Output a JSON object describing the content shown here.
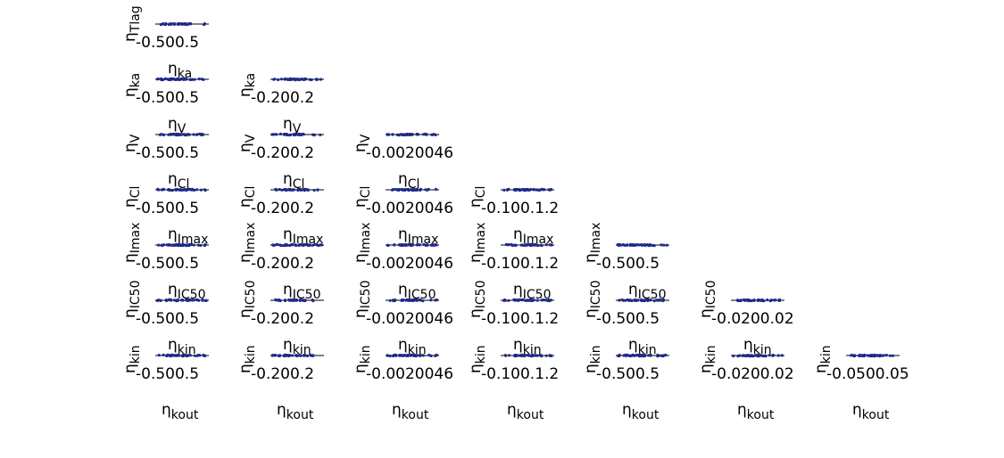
{
  "figure": {
    "background": "#ffffff",
    "marker_color": "#1f2a86",
    "axis_color": "#000000"
  },
  "parameters": [
    "Tlag",
    "ka",
    "V",
    "Cl",
    "Imax",
    "IC50",
    "kin"
  ],
  "bottom_parameter": "kout",
  "symbol": "η",
  "tick_labels": {
    "Tlag": "-0.500.5",
    "ka": "-0.200.2",
    "V": "-0.0020046",
    "Cl": "-0.100.1.2",
    "Imax": "-0.500.5",
    "IC50": "-0.0200.02",
    "kin": "-0.0500.05"
  },
  "chart_data": {
    "type": "scatter",
    "layout": "lower-triangular scatter matrix",
    "row_variables": [
      "Tlag",
      "ka",
      "V",
      "Cl",
      "Imax",
      "IC50",
      "kin"
    ],
    "column_variables": [
      "Tlag",
      "ka",
      "V",
      "Cl",
      "Imax",
      "IC50",
      "kin"
    ],
    "bottom_labels": [
      "kout",
      "kout",
      "kout",
      "kout",
      "kout",
      "kout",
      "kout"
    ],
    "tick_labels": {
      "Tlag": "-0.500.5",
      "ka": "-0.200.2",
      "V": "-0.0020046",
      "Cl": "-0.100.1.2",
      "Imax": "-0.500.5",
      "IC50": "-0.0200.02",
      "kin": "-0.0500.05"
    },
    "axis_ranges": {
      "Tlag": [
        -0.5,
        0.5
      ],
      "ka": [
        -0.2,
        0.2
      ],
      "V": [
        -0.02,
        0.06
      ],
      "Cl": [
        -0.1,
        0.2
      ],
      "Imax": [
        -0.5,
        0.5
      ],
      "IC50": [
        -0.02,
        0.02
      ],
      "kin": [
        -0.05,
        0.05
      ]
    },
    "grid": false,
    "legend": "none"
  }
}
